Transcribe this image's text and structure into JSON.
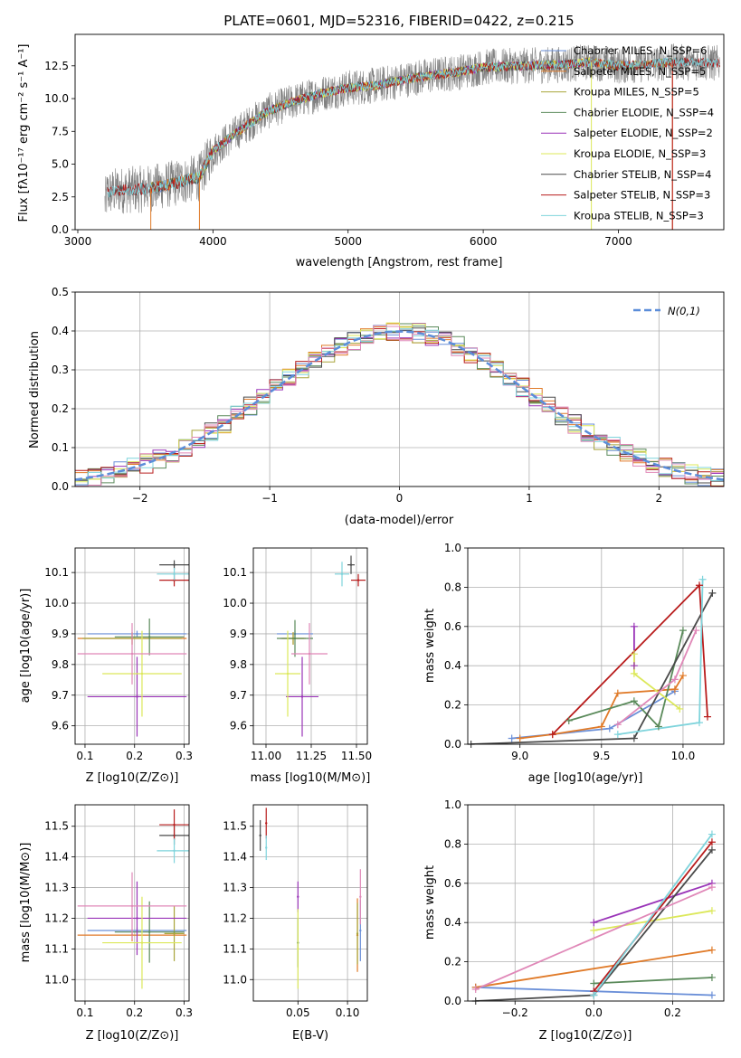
{
  "colors": {
    "chabrier_miles": "#6a8fd8",
    "salpeter_miles": "#e07a28",
    "kroupa_miles": "#a8a43a",
    "chabrier_elodie": "#5a8a5a",
    "salpeter_elodie": "#9a34b8",
    "kroupa_elodie": "#dce85a",
    "chabrier_stelib": "#4a4a4a",
    "salpeter_stelib": "#b81c1c",
    "kroupa_stelib": "#7fd4dc",
    "pink": "#e088b8",
    "gauss": "#5b8dd9",
    "spectrum": "#808080"
  },
  "chart_data": [
    {
      "type": "line",
      "title": "PLATE=0601, MJD=52316, FIBERID=0422, z=0.215",
      "xlabel": "wavelength [Angstrom, rest frame]",
      "ylabel": "Flux [fλ10⁻¹⁷ erg cm⁻² s⁻¹ A⁻¹]",
      "xlim": [
        2980,
        7780
      ],
      "ylim": [
        0,
        14.9
      ],
      "xticks": [
        "3000",
        "4000",
        "5000",
        "6000",
        "7000"
      ],
      "yticks": [
        "0.0",
        "2.5",
        "5.0",
        "7.5",
        "10.0",
        "12.5"
      ],
      "legend_position": "right",
      "legend": [
        {
          "label": "Chabrier MILES, N_SSP=6",
          "color_key": "chabrier_miles"
        },
        {
          "label": "Salpeter MILES, N_SSP=5",
          "color_key": "salpeter_miles"
        },
        {
          "label": "Kroupa MILES, N_SSP=5",
          "color_key": "kroupa_miles"
        },
        {
          "label": "Chabrier ELODIE, N_SSP=4",
          "color_key": "chabrier_elodie"
        },
        {
          "label": "Salpeter ELODIE, N_SSP=2",
          "color_key": "salpeter_elodie"
        },
        {
          "label": "Kroupa ELODIE, N_SSP=3",
          "color_key": "kroupa_elodie"
        },
        {
          "label": "Chabrier STELIB, N_SSP=4",
          "color_key": "chabrier_stelib"
        },
        {
          "label": "Salpeter STELIB, N_SSP=3",
          "color_key": "salpeter_stelib"
        },
        {
          "label": "Kroupa STELIB, N_SSP=3",
          "color_key": "kroupa_stelib"
        }
      ],
      "continuum": {
        "x": [
          3200,
          3220,
          3300,
          3500,
          3700,
          3900,
          4000,
          4200,
          4400,
          4600,
          4800,
          5000,
          5200,
          5500,
          5800,
          6000,
          6300,
          6600,
          6800,
          7000,
          7200,
          7400,
          7700
        ],
        "y": [
          2.0,
          2.8,
          3.0,
          3.1,
          3.5,
          4.0,
          6.0,
          7.6,
          9.0,
          9.8,
          10.4,
          10.8,
          11.0,
          11.6,
          12.0,
          12.4,
          12.5,
          12.6,
          12.8,
          12.5,
          12.6,
          12.8,
          12.7
        ]
      }
    },
    {
      "type": "bar",
      "xlabel": "(data-model)/error",
      "ylabel": "Normed distribution",
      "xlim": [
        -2.5,
        2.5
      ],
      "ylim": [
        0,
        0.5
      ],
      "xticks": [
        "−2",
        "−1",
        "0",
        "1",
        "2"
      ],
      "yticks": [
        "0.0",
        "0.1",
        "0.2",
        "0.3",
        "0.4",
        "0.5"
      ],
      "legend": [
        {
          "label": "N(0,1)"
        }
      ],
      "legend_position": "upper right",
      "grid": true
    },
    {
      "type": "scatter",
      "xlabel": "Z [log10(Z/Z⊙)]",
      "ylabel": "age [log10(age/yr)]",
      "xlim": [
        0.08,
        0.31
      ],
      "ylim": [
        9.54,
        10.18
      ],
      "xticks": [
        "0.1",
        "0.2",
        "0.3"
      ],
      "yticks": [
        "9.6",
        "9.7",
        "9.8",
        "9.9",
        "10.0",
        "10.1"
      ],
      "points": [
        {
          "c": "chabrier_miles",
          "x": 0.205,
          "y": 9.9,
          "ex": 0.1,
          "ey": 0.01
        },
        {
          "c": "salpeter_miles",
          "x": 0.195,
          "y": 9.885,
          "ex": 0.11,
          "ey": 0.02
        },
        {
          "c": "kroupa_miles",
          "x": 0.195,
          "y": 9.885,
          "ex": 0.1,
          "ey": 0.02
        },
        {
          "c": "chabrier_elodie",
          "x": 0.23,
          "y": 9.89,
          "ex": 0.07,
          "ey": 0.06
        },
        {
          "c": "salpeter_elodie",
          "x": 0.205,
          "y": 9.695,
          "ex": 0.1,
          "ey": 0.13
        },
        {
          "c": "kroupa_elodie",
          "x": 0.215,
          "y": 9.77,
          "ex": 0.08,
          "ey": 0.14
        },
        {
          "c": "chabrier_stelib",
          "x": 0.28,
          "y": 10.125,
          "ex": 0.03,
          "ey": 0.015
        },
        {
          "c": "salpeter_stelib",
          "x": 0.28,
          "y": 10.075,
          "ex": 0.03,
          "ey": 0.02
        },
        {
          "c": "kroupa_stelib",
          "x": 0.28,
          "y": 10.095,
          "ex": 0.035,
          "ey": 0.02
        },
        {
          "c": "pink",
          "x": 0.195,
          "y": 9.835,
          "ex": 0.11,
          "ey": 0.1
        }
      ]
    },
    {
      "type": "scatter",
      "xlabel": "mass [log10(M/M⊙)]",
      "xlim": [
        10.93,
        11.56
      ],
      "ylim": [
        9.54,
        10.18
      ],
      "xticks": [
        "11.00",
        "11.25",
        "11.50"
      ],
      "yticks": [
        "9.6",
        "9.7",
        "9.8",
        "9.9",
        "10.0",
        "10.1"
      ],
      "points": [
        {
          "c": "chabrier_miles",
          "x": 11.16,
          "y": 9.9,
          "ex": 0.1,
          "ey": 0.01
        },
        {
          "c": "salpeter_miles",
          "x": 11.15,
          "y": 9.885,
          "ex": 0.07,
          "ey": 0.02
        },
        {
          "c": "kroupa_miles",
          "x": 11.15,
          "y": 9.885,
          "ex": 0.06,
          "ey": 0.02
        },
        {
          "c": "chabrier_elodie",
          "x": 11.16,
          "y": 9.885,
          "ex": 0.1,
          "ey": 0.06
        },
        {
          "c": "salpeter_elodie",
          "x": 11.2,
          "y": 9.695,
          "ex": 0.09,
          "ey": 0.13
        },
        {
          "c": "kroupa_elodie",
          "x": 11.12,
          "y": 9.77,
          "ex": 0.07,
          "ey": 0.14
        },
        {
          "c": "chabrier_stelib",
          "x": 11.47,
          "y": 10.125,
          "ex": 0.02,
          "ey": 0.03
        },
        {
          "c": "salpeter_stelib",
          "x": 11.51,
          "y": 10.075,
          "ex": 0.04,
          "ey": 0.02
        },
        {
          "c": "kroupa_stelib",
          "x": 11.42,
          "y": 10.095,
          "ex": 0.04,
          "ey": 0.04
        },
        {
          "c": "pink",
          "x": 11.24,
          "y": 9.835,
          "ex": 0.1,
          "ey": 0.1
        }
      ]
    },
    {
      "type": "line",
      "xlabel": "age [log10(age/yr)]",
      "ylabel": "mass weight",
      "xlim": [
        8.68,
        10.25
      ],
      "ylim": [
        0,
        1
      ],
      "xticks": [
        "9.0",
        "9.5",
        "10.0"
      ],
      "yticks": [
        "0.0",
        "0.2",
        "0.4",
        "0.6",
        "0.8",
        "1.0"
      ],
      "series": [
        {
          "c": "chabrier_miles",
          "x": [
            8.95,
            9.55,
            9.95
          ],
          "y": [
            0.03,
            0.08,
            0.27
          ]
        },
        {
          "c": "salpeter_miles",
          "x": [
            9.0,
            9.2,
            9.5,
            9.6,
            9.95,
            10.0
          ],
          "y": [
            0.03,
            0.05,
            0.09,
            0.26,
            0.28,
            0.35
          ]
        },
        {
          "c": "chabrier_elodie",
          "x": [
            9.3,
            9.7,
            9.85,
            10.0
          ],
          "y": [
            0.12,
            0.22,
            0.09,
            0.58
          ]
        },
        {
          "c": "salpeter_elodie",
          "x": [
            9.7,
            9.7
          ],
          "y": [
            0.4,
            0.6
          ]
        },
        {
          "c": "kroupa_elodie",
          "x": [
            9.7,
            9.7,
            9.98
          ],
          "y": [
            0.46,
            0.36,
            0.18
          ]
        },
        {
          "c": "chabrier_stelib",
          "x": [
            8.7,
            9.7,
            10.18
          ],
          "y": [
            0.0,
            0.03,
            0.77
          ]
        },
        {
          "c": "salpeter_stelib",
          "x": [
            9.2,
            10.1,
            10.15
          ],
          "y": [
            0.05,
            0.81,
            0.14
          ]
        },
        {
          "c": "kroupa_stelib",
          "x": [
            9.6,
            10.1,
            10.12
          ],
          "y": [
            0.05,
            0.11,
            0.84
          ]
        },
        {
          "c": "pink",
          "x": [
            9.6,
            9.95,
            10.08
          ],
          "y": [
            0.1,
            0.33,
            0.58
          ]
        }
      ]
    },
    {
      "type": "scatter",
      "xlabel": "Z [log10(Z/Z⊙)]",
      "ylabel": "mass [log10(M/M⊙)]",
      "xlim": [
        0.08,
        0.31
      ],
      "ylim": [
        10.93,
        11.57
      ],
      "xticks": [
        "0.1",
        "0.2",
        "0.3"
      ],
      "yticks": [
        "11.0",
        "11.1",
        "11.2",
        "11.3",
        "11.4",
        "11.5"
      ],
      "points": [
        {
          "c": "chabrier_miles",
          "x": 0.205,
          "y": 11.16,
          "ex": 0.1,
          "ey": 0.01
        },
        {
          "c": "salpeter_miles",
          "x": 0.195,
          "y": 11.145,
          "ex": 0.11,
          "ey": 0.02
        },
        {
          "c": "kroupa_miles",
          "x": 0.28,
          "y": 11.15,
          "ex": 0.02,
          "ey": 0.09
        },
        {
          "c": "chabrier_elodie",
          "x": 0.23,
          "y": 11.155,
          "ex": 0.07,
          "ey": 0.1
        },
        {
          "c": "salpeter_elodie",
          "x": 0.205,
          "y": 11.2,
          "ex": 0.1,
          "ey": 0.12
        },
        {
          "c": "kroupa_elodie",
          "x": 0.215,
          "y": 11.12,
          "ex": 0.08,
          "ey": 0.15
        },
        {
          "c": "chabrier_stelib",
          "x": 0.28,
          "y": 11.47,
          "ex": 0.03,
          "ey": 0.03
        },
        {
          "c": "salpeter_stelib",
          "x": 0.28,
          "y": 11.505,
          "ex": 0.03,
          "ey": 0.05
        },
        {
          "c": "kroupa_stelib",
          "x": 0.28,
          "y": 11.42,
          "ex": 0.035,
          "ey": 0.04
        },
        {
          "c": "pink",
          "x": 0.195,
          "y": 11.24,
          "ex": 0.11,
          "ey": 0.11
        }
      ]
    },
    {
      "type": "scatter",
      "xlabel": "E(B-V)",
      "xlim": [
        0.005,
        0.12
      ],
      "ylim": [
        10.93,
        11.57
      ],
      "xticks": [
        "0.05",
        "0.10"
      ],
      "yticks": [
        "11.0",
        "11.1",
        "11.2",
        "11.3",
        "11.4",
        "11.5"
      ],
      "points": [
        {
          "c": "chabrier_miles",
          "x": 0.113,
          "y": 11.16,
          "ex": 0.0,
          "ey": 0.1
        },
        {
          "c": "salpeter_miles",
          "x": 0.11,
          "y": 11.145,
          "ex": 0.0,
          "ey": 0.12
        },
        {
          "c": "kroupa_miles",
          "x": 0.11,
          "y": 11.15,
          "ex": 0.0,
          "ey": 0.1
        },
        {
          "c": "chabrier_elodie",
          "x": 0.05,
          "y": 11.12,
          "ex": 0.0,
          "ey": 0.08
        },
        {
          "c": "salpeter_elodie",
          "x": 0.05,
          "y": 11.27,
          "ex": 0.0,
          "ey": 0.05
        },
        {
          "c": "kroupa_elodie",
          "x": 0.05,
          "y": 11.1,
          "ex": 0.0,
          "ey": 0.13
        },
        {
          "c": "chabrier_stelib",
          "x": 0.012,
          "y": 11.47,
          "ex": 0.0,
          "ey": 0.05
        },
        {
          "c": "salpeter_stelib",
          "x": 0.018,
          "y": 11.51,
          "ex": 0.0,
          "ey": 0.05
        },
        {
          "c": "kroupa_stelib",
          "x": 0.018,
          "y": 11.43,
          "ex": 0.0,
          "ey": 0.04
        },
        {
          "c": "pink",
          "x": 0.113,
          "y": 11.27,
          "ex": 0.0,
          "ey": 0.09
        }
      ]
    },
    {
      "type": "line",
      "xlabel": "Z [log10(Z/Z⊙)]",
      "ylabel": "mass weight",
      "xlim": [
        -0.32,
        0.33
      ],
      "ylim": [
        0,
        1
      ],
      "xticks": [
        "−0.2",
        "0.0",
        "0.2"
      ],
      "yticks": [
        "0.0",
        "0.2",
        "0.4",
        "0.6",
        "0.8",
        "1.0"
      ],
      "series": [
        {
          "c": "chabrier_miles",
          "x": [
            -0.3,
            0.0,
            0.3
          ],
          "y": [
            0.07,
            0.05,
            0.03
          ]
        },
        {
          "c": "salpeter_miles",
          "x": [
            -0.3,
            0.3
          ],
          "y": [
            0.07,
            0.26
          ]
        },
        {
          "c": "chabrier_elodie",
          "x": [
            0.0,
            0.3
          ],
          "y": [
            0.09,
            0.12
          ]
        },
        {
          "c": "salpeter_elodie",
          "x": [
            0.0,
            0.3
          ],
          "y": [
            0.4,
            0.6
          ]
        },
        {
          "c": "kroupa_elodie",
          "x": [
            0.0,
            0.3
          ],
          "y": [
            0.36,
            0.46
          ]
        },
        {
          "c": "chabrier_stelib",
          "x": [
            -0.3,
            0.0,
            0.3
          ],
          "y": [
            0.0,
            0.03,
            0.77
          ]
        },
        {
          "c": "salpeter_stelib",
          "x": [
            0.0,
            0.3
          ],
          "y": [
            0.05,
            0.81
          ]
        },
        {
          "c": "kroupa_stelib",
          "x": [
            0.0,
            0.3
          ],
          "y": [
            0.03,
            0.85
          ]
        },
        {
          "c": "pink",
          "x": [
            -0.3,
            0.3
          ],
          "y": [
            0.06,
            0.58
          ]
        }
      ]
    }
  ]
}
